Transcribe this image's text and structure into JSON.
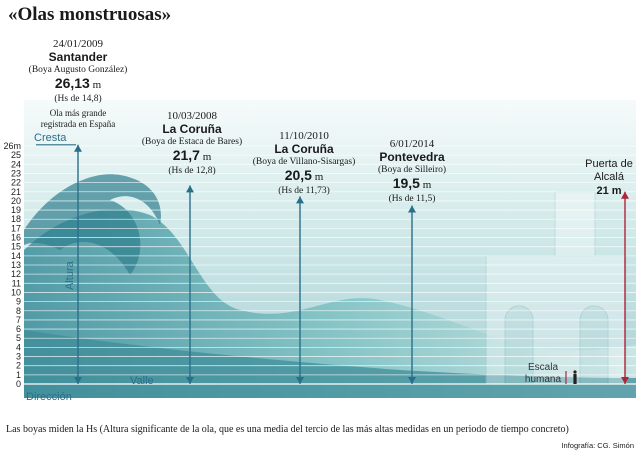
{
  "title": "«Olas monstruosas»",
  "footnote": "Las boyas miden la Hs (Altura significante de la ola, que es una media del tercio de las más altas medidas en un periodo de tiempo concreto)",
  "credit": "Infografía: CG. Simón",
  "labels": {
    "cresta": "Cresta",
    "altura": "Altura",
    "valle": "Valle",
    "direccion": "Dirección",
    "escala": "Escala humana"
  },
  "colors": {
    "arrow": "#2a6f8a",
    "reference": "#b0243a",
    "sea_light": "#d9efee",
    "sea_dark": "#4e9aa6"
  },
  "chart_data": {
    "type": "bar",
    "ylabel": "Altura",
    "y_unit": "m",
    "ylim": [
      0,
      26
    ],
    "yticks": [
      0,
      1,
      2,
      3,
      4,
      5,
      6,
      7,
      8,
      9,
      10,
      11,
      12,
      13,
      14,
      15,
      16,
      17,
      18,
      19,
      20,
      21,
      22,
      23,
      24,
      25,
      26
    ],
    "top_tick_label": "26m",
    "grid": true,
    "series": [
      {
        "values": [
          26.13,
          21.7,
          20.5,
          19.5
        ],
        "date": [
          "24/01/2009",
          "10/03/2008",
          "11/10/2010",
          "6/01/2014"
        ],
        "city": [
          "Santander",
          "La Coruña",
          "La Coruña",
          "Pontevedra"
        ],
        "buoy": [
          "(Boya Augusto González)",
          "(Boya de Estaca de Bares)",
          "(Boya de Villano-Sisargas)",
          "(Boya de Silleiro)"
        ],
        "height_label": [
          "26,13",
          "21,7",
          "20,5",
          "19,5"
        ],
        "unit": "m",
        "hs": [
          "(Hs de 14,8)",
          "(Hs de 12,8)",
          "(Hs de 11,73)",
          "(Hs de 11,5)"
        ],
        "note": [
          "Ola más grande registrada en España",
          "",
          "",
          ""
        ]
      }
    ],
    "reference": {
      "name": "Puerta de Alcalá",
      "value": 21,
      "height_label": "21 m"
    }
  }
}
